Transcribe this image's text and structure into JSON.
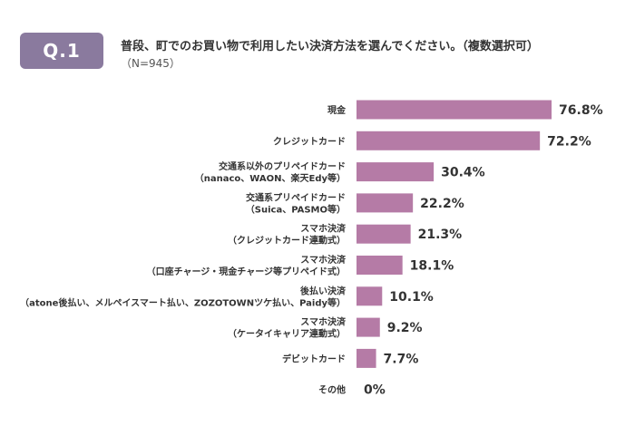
{
  "header": {
    "badge": "Q.1",
    "question": "普段、町でのお買い物で利用したい決済方法を選んでください。（複数選択可）",
    "sample": "（N=945）"
  },
  "colors": {
    "bar": "#b57ba6",
    "badge": "#8a7a9e"
  },
  "chart_data": {
    "type": "bar",
    "orientation": "horizontal",
    "unit": "%",
    "xlim": [
      0,
      100
    ],
    "grid": false,
    "categories": [
      [
        "現金"
      ],
      [
        "クレジットカード"
      ],
      [
        "交通系以外のプリペイドカード",
        "（nanaco、WAON、楽天Edy等）"
      ],
      [
        "交通系プリペイドカード",
        "（Suica、PASMO等）"
      ],
      [
        "スマホ決済",
        "（クレジットカード連動式）"
      ],
      [
        "スマホ決済",
        "（口座チャージ・現金チャージ等プリペイド式）"
      ],
      [
        "後払い決済",
        "（atone後払い、メルペイスマート払い、ZOZOTOWNツケ払い、Paidy等）"
      ],
      [
        "スマホ決済",
        "（ケータイキャリア連動式）"
      ],
      [
        "デビットカード"
      ],
      [
        "その他"
      ]
    ],
    "values": [
      76.8,
      72.2,
      30.4,
      22.2,
      21.3,
      18.1,
      10.1,
      9.2,
      7.7,
      0
    ],
    "value_labels": [
      "76.8%",
      "72.2%",
      "30.4%",
      "22.2%",
      "21.3%",
      "18.1%",
      "10.1%",
      "9.2%",
      "7.7%",
      "0%"
    ]
  }
}
